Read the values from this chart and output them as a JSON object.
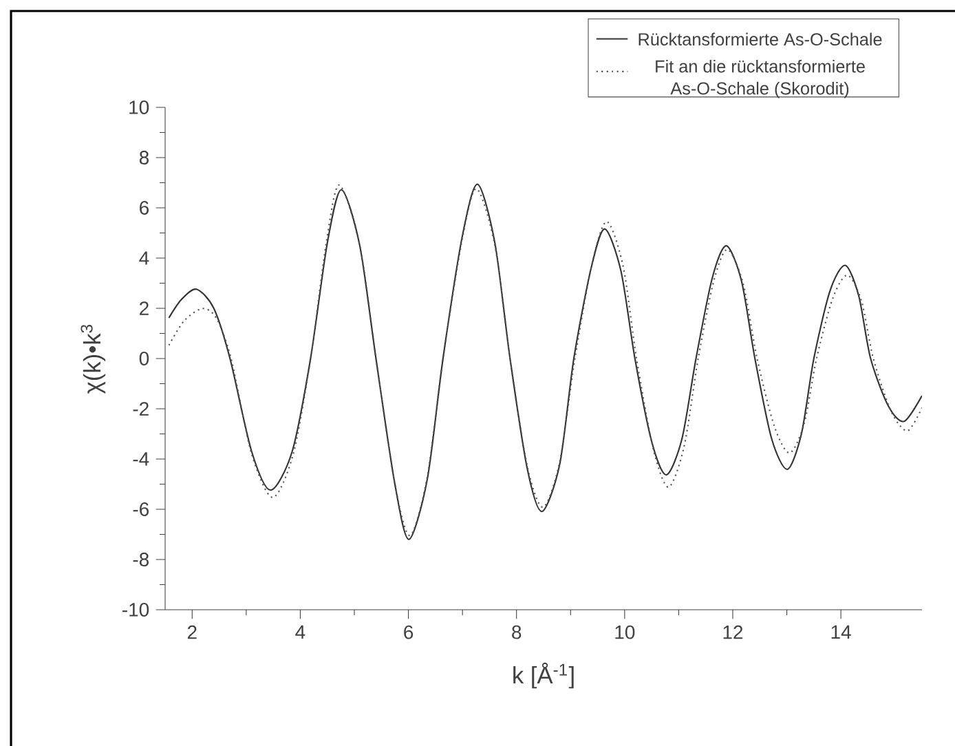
{
  "chart_data": {
    "type": "line",
    "xlabel": "k [Å$^{-1}$]",
    "ylabel": "χ(k)•k$^{3}$",
    "xlim": [
      1.5,
      15.5
    ],
    "ylim": [
      -10,
      10
    ],
    "xticks": [
      2,
      4,
      6,
      8,
      10,
      12,
      14
    ],
    "yticks": [
      -10,
      -8,
      -6,
      -4,
      -2,
      0,
      2,
      4,
      6,
      8,
      10
    ],
    "legend": "top right",
    "grid": false,
    "series": [
      {
        "name": "Rücktansformierte As-O-Schale",
        "color": "#333333",
        "line_style": "solid",
        "x": [
          1.57,
          1.8,
          2.08,
          2.4,
          2.7,
          3.1,
          3.45,
          3.85,
          4.19,
          4.5,
          4.76,
          5.1,
          5.4,
          5.75,
          6.01,
          6.35,
          6.64,
          7.0,
          7.28,
          7.6,
          7.88,
          8.2,
          8.47,
          8.8,
          9.06,
          9.38,
          9.63,
          9.93,
          10.19,
          10.5,
          10.77,
          11.06,
          11.32,
          11.62,
          11.88,
          12.16,
          12.41,
          12.72,
          13.01,
          13.27,
          13.5,
          13.8,
          14.08,
          14.33,
          14.55,
          14.88,
          15.17,
          15.5
        ],
        "values": [
          1.62,
          2.35,
          2.76,
          2.0,
          0,
          -3.7,
          -5.24,
          -3.7,
          0,
          4.6,
          6.72,
          4.5,
          0,
          -5.0,
          -7.2,
          -4.8,
          0,
          4.9,
          6.94,
          4.6,
          0,
          -4.4,
          -6.09,
          -4.2,
          0,
          3.6,
          5.16,
          3.5,
          0,
          -3.3,
          -4.63,
          -3.2,
          0,
          3.2,
          4.49,
          3.1,
          0,
          -3.2,
          -4.41,
          -3.0,
          0,
          2.7,
          3.71,
          2.5,
          0,
          -1.9,
          -2.5,
          -1.48
        ]
      },
      {
        "name": "Fit an die rücktansformierte As-O-Schale (Skorodit)",
        "color": "#555555",
        "line_style": "dotted",
        "x": [
          1.57,
          1.85,
          2.19,
          2.45,
          2.72,
          3.1,
          3.49,
          3.87,
          4.19,
          4.48,
          4.72,
          5.1,
          5.4,
          5.75,
          6.03,
          6.35,
          6.64,
          7.0,
          7.26,
          7.6,
          7.88,
          8.2,
          8.49,
          8.8,
          9.08,
          9.4,
          9.67,
          9.97,
          10.22,
          10.53,
          10.81,
          11.1,
          11.36,
          11.65,
          11.9,
          12.19,
          12.45,
          12.77,
          13.05,
          13.32,
          13.55,
          13.85,
          14.12,
          14.38,
          14.6,
          14.93,
          15.23,
          15.5
        ],
        "values": [
          0.53,
          1.5,
          1.99,
          1.6,
          0,
          -3.8,
          -5.53,
          -3.8,
          0,
          4.6,
          6.91,
          4.5,
          0,
          -5.0,
          -7.05,
          -4.7,
          0,
          4.8,
          6.76,
          4.5,
          0,
          -4.3,
          -5.92,
          -4.1,
          0,
          3.8,
          5.45,
          3.7,
          0,
          -3.6,
          -5.12,
          -3.5,
          0,
          3.1,
          4.34,
          3.0,
          0,
          -2.7,
          -3.76,
          -2.6,
          0,
          2.4,
          3.32,
          2.3,
          0,
          -2.1,
          -2.88,
          -1.96
        ]
      }
    ]
  }
}
